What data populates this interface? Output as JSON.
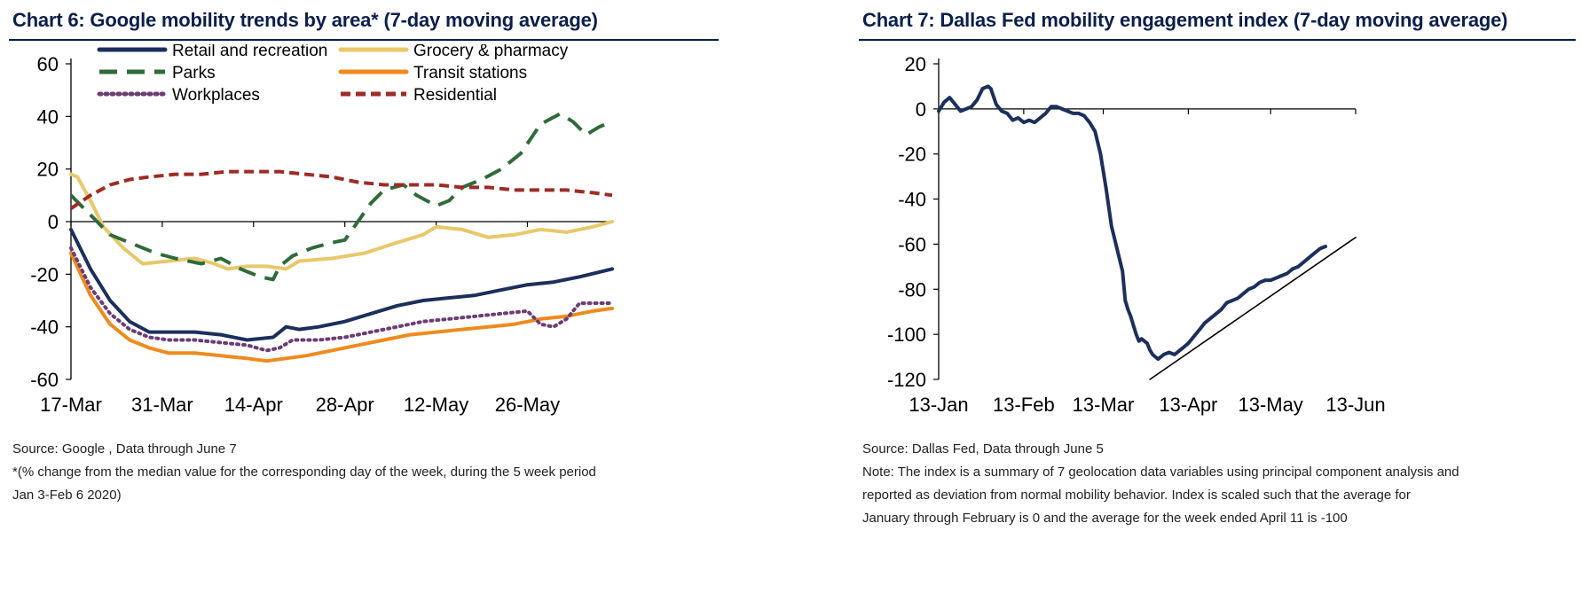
{
  "chart_data": [
    {
      "type": "line",
      "title": "Chart 6: Google mobility trends by area* (7-day moving average)",
      "xlabel": "",
      "ylabel": "",
      "ylim": [
        -60,
        60
      ],
      "yticks": [
        60,
        40,
        20,
        0,
        -20,
        -40,
        -60
      ],
      "xticks": [
        "17-Mar",
        "31-Mar",
        "14-Apr",
        "28-Apr",
        "12-May",
        "26-May"
      ],
      "x_range_days": [
        0,
        83
      ],
      "xtick_days": [
        0,
        14,
        28,
        42,
        56,
        70
      ],
      "series": [
        {
          "name": "Retail and recreation",
          "color": "#1c2f5c",
          "dash": "solid",
          "x": [
            0,
            3,
            6,
            9,
            12,
            15,
            19,
            23,
            27,
            31,
            33,
            35,
            38,
            42,
            46,
            50,
            54,
            58,
            62,
            66,
            70,
            74,
            78,
            83
          ],
          "values": [
            -3,
            -18,
            -30,
            -38,
            -42,
            -42,
            -42,
            -43,
            -45,
            -44,
            -40,
            -41,
            -40,
            -38,
            -35,
            -32,
            -30,
            -29,
            -28,
            -26,
            -24,
            -23,
            -21,
            -18
          ]
        },
        {
          "name": "Grocery & pharmacy",
          "color": "#e8c86a",
          "dash": "solid",
          "x": [
            0,
            1,
            3,
            5,
            8,
            11,
            15,
            19,
            22,
            24,
            27,
            30,
            33,
            35,
            40,
            45,
            50,
            54,
            56,
            60,
            64,
            68,
            72,
            76,
            80,
            83
          ],
          "values": [
            18,
            17,
            8,
            -2,
            -10,
            -16,
            -15,
            -14,
            -16,
            -18,
            -17,
            -17,
            -18,
            -15,
            -14,
            -12,
            -8,
            -5,
            -2,
            -3,
            -6,
            -5,
            -3,
            -4,
            -2,
            0
          ]
        },
        {
          "name": "Parks",
          "color": "#2f6b3a",
          "dash": "long",
          "x": [
            0,
            2,
            4,
            6,
            10,
            13,
            16,
            20,
            23,
            26,
            29,
            31,
            32,
            34,
            37,
            40,
            42,
            44,
            46,
            48,
            51,
            53,
            56,
            58,
            60,
            63,
            66,
            69,
            72,
            75,
            77,
            79,
            81,
            83
          ],
          "values": [
            10,
            5,
            0,
            -5,
            -9,
            -12,
            -14,
            -16,
            -14,
            -18,
            -21,
            -22,
            -17,
            -13,
            -10,
            -8,
            -7,
            0,
            7,
            12,
            14,
            10,
            6,
            8,
            13,
            16,
            20,
            26,
            37,
            41,
            38,
            33,
            36,
            38
          ]
        },
        {
          "name": "Transit stations",
          "color": "#ef8a1e",
          "dash": "solid",
          "x": [
            0,
            3,
            6,
            9,
            12,
            15,
            19,
            23,
            27,
            30,
            33,
            36,
            40,
            44,
            48,
            52,
            56,
            60,
            64,
            68,
            72,
            76,
            80,
            83
          ],
          "values": [
            -12,
            -28,
            -39,
            -45,
            -48,
            -50,
            -50,
            -51,
            -52,
            -53,
            -52,
            -51,
            -49,
            -47,
            -45,
            -43,
            -42,
            -41,
            -40,
            -39,
            -37,
            -36,
            -34,
            -33
          ]
        },
        {
          "name": "Workplaces",
          "color": "#6b3d72",
          "dash": "dotted",
          "x": [
            0,
            3,
            6,
            9,
            12,
            15,
            19,
            23,
            27,
            30,
            32,
            34,
            38,
            42,
            46,
            50,
            54,
            58,
            62,
            66,
            70,
            72,
            74,
            76,
            78,
            80,
            83
          ],
          "values": [
            -10,
            -25,
            -35,
            -41,
            -44,
            -45,
            -45,
            -46,
            -47,
            -49,
            -48,
            -45,
            -45,
            -44,
            -42,
            -40,
            -38,
            -37,
            -36,
            -35,
            -34,
            -39,
            -40,
            -37,
            -31,
            -31,
            -31
          ]
        },
        {
          "name": "Residential",
          "color": "#9e2b25",
          "dash": "dashed",
          "x": [
            0,
            3,
            6,
            9,
            12,
            16,
            20,
            24,
            28,
            32,
            36,
            40,
            44,
            48,
            52,
            56,
            60,
            64,
            68,
            72,
            76,
            80,
            83
          ],
          "values": [
            5,
            10,
            14,
            16,
            17,
            18,
            18,
            19,
            19,
            19,
            18,
            17,
            15,
            14,
            14,
            14,
            13,
            13,
            12,
            12,
            12,
            11,
            10
          ]
        }
      ]
    },
    {
      "type": "line",
      "title": "Chart 7: Dallas Fed mobility engagement index (7-day moving average)",
      "xlabel": "",
      "ylabel": "",
      "ylim": [
        -120,
        20
      ],
      "yticks": [
        20,
        0,
        -20,
        -40,
        -60,
        -80,
        -100,
        -120
      ],
      "xticks": [
        "13-Jan",
        "13-Feb",
        "13-Mar",
        "13-Apr",
        "13-May",
        "13-Jun"
      ],
      "x_range_days": [
        0,
        152
      ],
      "xtick_days": [
        0,
        31,
        60,
        91,
        121,
        152
      ],
      "series": [
        {
          "name": "Mobility engagement index",
          "color": "#1c2f5c",
          "dash": "solid",
          "x": [
            0,
            2,
            4,
            6,
            8,
            10,
            12,
            14,
            16,
            18,
            19,
            21,
            23,
            25,
            27,
            29,
            31,
            33,
            35,
            37,
            39,
            41,
            43,
            45,
            47,
            49,
            51,
            53,
            55,
            57,
            59,
            61,
            63,
            65,
            67,
            68,
            69,
            70,
            71,
            72,
            73,
            74,
            75,
            76,
            77,
            78,
            79,
            80,
            82,
            84,
            86,
            88,
            89,
            91,
            93,
            95,
            97,
            99,
            101,
            103,
            105,
            107,
            109,
            111,
            113,
            115,
            117,
            119,
            121,
            123,
            125,
            127,
            129,
            131,
            133,
            135,
            137,
            139,
            141
          ],
          "values": [
            -1,
            3,
            5,
            2,
            -1,
            0,
            1,
            4,
            9,
            10,
            9,
            2,
            -1,
            -2,
            -5,
            -4,
            -6,
            -5,
            -6,
            -4,
            -2,
            1,
            1,
            0,
            -1,
            -2,
            -2,
            -3,
            -6,
            -10,
            -20,
            -35,
            -52,
            -62,
            -72,
            -85,
            -89,
            -92,
            -96,
            -100,
            -103,
            -102,
            -103,
            -104,
            -107,
            -109,
            -110,
            -111,
            -109,
            -108,
            -109,
            -107,
            -106,
            -104,
            -101,
            -98,
            -95,
            -93,
            -91,
            -89,
            -86,
            -85,
            -84,
            -82,
            -80,
            -79,
            -77,
            -76,
            -76,
            -75,
            -74,
            -73,
            -71,
            -70,
            -68,
            -66,
            -64,
            -62,
            -61
          ]
        },
        {
          "name": "Trend line",
          "color": "#000000",
          "dash": "solid",
          "x": [
            77,
            152
          ],
          "values": [
            -120,
            -57
          ]
        }
      ]
    }
  ],
  "legend_left": [
    [
      "Retail and recreation",
      "Grocery & pharmacy"
    ],
    [
      "Parks",
      "Transit stations"
    ],
    [
      "Workplaces",
      "Residential"
    ]
  ],
  "notes_left": [
    "Source: Google , Data through June 7",
    "*(% change from the median value for the corresponding day of the week, during the 5 week period",
    "Jan 3-Feb 6 2020)"
  ],
  "notes_right": [
    "Source: Dallas Fed, Data through June 5",
    "Note: The index is a summary of 7 geolocation data variables using principal component analysis and",
    "reported as deviation from normal mobility behavior. Index is scaled such that the average for",
    "January through February is 0 and the average for the week ended April 11 is -100"
  ]
}
